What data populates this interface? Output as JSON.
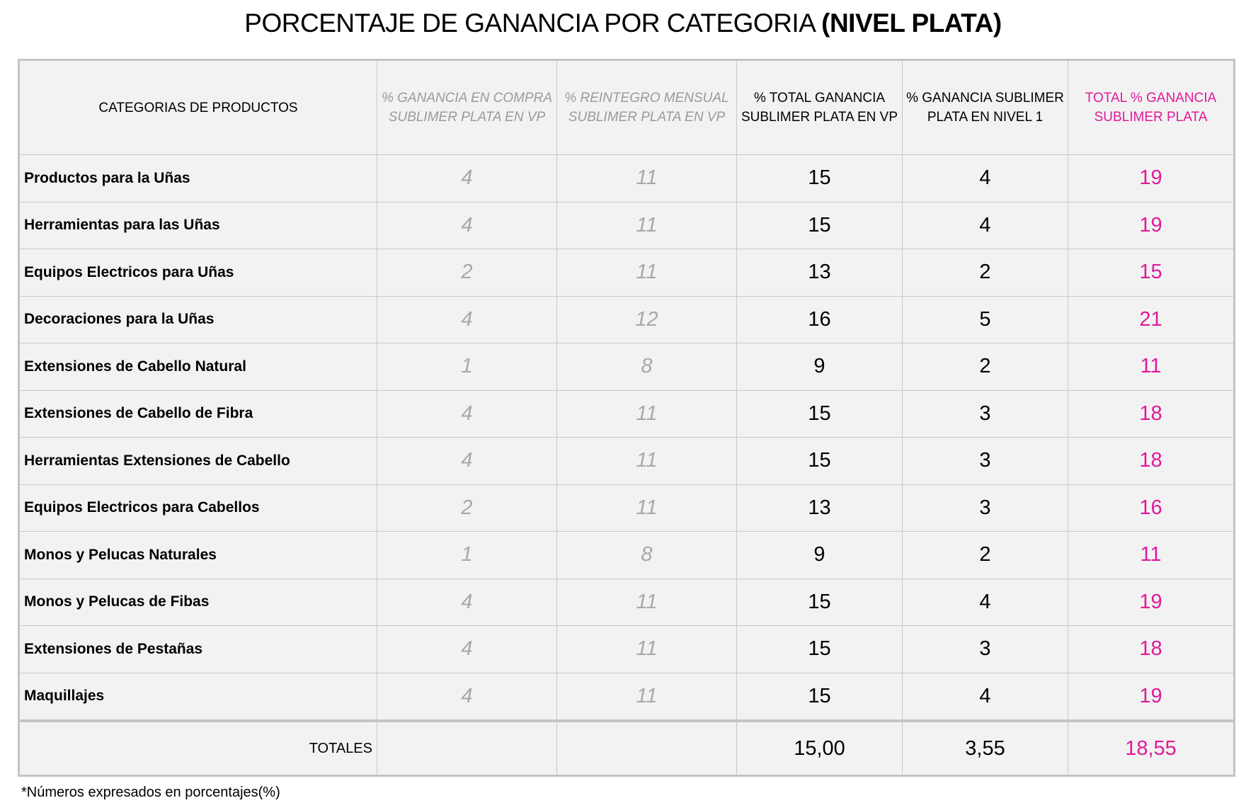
{
  "title": {
    "main": "PORCENTAJE DE GANANCIA POR CATEGORIA",
    "bold": "(NIVEL PLATA)"
  },
  "colors": {
    "accent_pink": "#e0199a",
    "muted_gray": "#a8a8a8",
    "cell_bg": "#f2f2f2",
    "border": "#c8c8c8"
  },
  "headers": [
    "CATEGORIAS DE PRODUCTOS",
    "% GANANCIA EN COMPRA  SUBLIMER PLATA EN VP",
    "% REINTEGRO MENSUAL  SUBLIMER PLATA EN VP",
    "% TOTAL GANANCIA SUBLIMER PLATA EN VP",
    "% GANANCIA SUBLIMER PLATA EN NIVEL 1",
    "TOTAL % GANANCIA SUBLIMER  PLATA"
  ],
  "rows": [
    [
      "Productos para la Uñas",
      "4",
      "11",
      "15",
      "4",
      "19"
    ],
    [
      "Herramientas para las Uñas",
      "4",
      "11",
      "15",
      "4",
      "19"
    ],
    [
      "Equipos Electricos para Uñas",
      "2",
      "11",
      "13",
      "2",
      "15"
    ],
    [
      "Decoraciones para la Uñas",
      "4",
      "12",
      "16",
      "5",
      "21"
    ],
    [
      "Extensiones de Cabello Natural",
      "1",
      "8",
      "9",
      "2",
      "11"
    ],
    [
      "Extensiones de Cabello de Fibra",
      "4",
      "11",
      "15",
      "3",
      "18"
    ],
    [
      "Herramientas Extensiones de Cabello",
      "4",
      "11",
      "15",
      "3",
      "18"
    ],
    [
      "Equipos Electricos para Cabellos",
      "2",
      "11",
      "13",
      "3",
      "16"
    ],
    [
      "Monos y Pelucas Naturales",
      "1",
      "8",
      "9",
      "2",
      "11"
    ],
    [
      "Monos y Pelucas de Fibas",
      "4",
      "11",
      "15",
      "4",
      "19"
    ],
    [
      "Extensiones de Pestañas",
      "4",
      "11",
      "15",
      "3",
      "18"
    ],
    [
      "Maquillajes",
      "4",
      "11",
      "15",
      "4",
      "19"
    ]
  ],
  "totals": {
    "label": "TOTALES",
    "values": [
      "",
      "",
      "15,00",
      "3,55",
      "18,55"
    ]
  },
  "footnote": "*Números expresados en porcentajes(%)"
}
